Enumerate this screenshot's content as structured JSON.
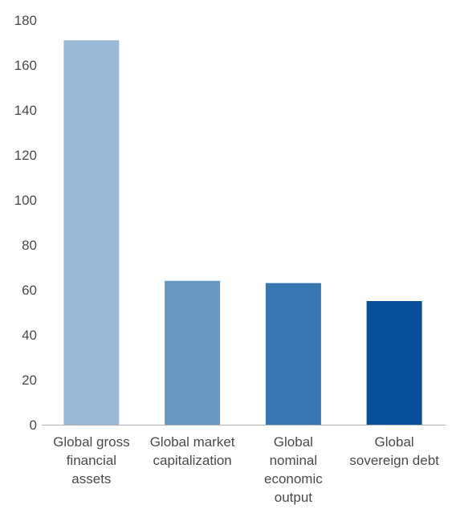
{
  "chart_data": {
    "type": "bar",
    "title": "",
    "xlabel": "",
    "ylabel": "",
    "ylim": [
      0,
      180
    ],
    "yticks": [
      0,
      20,
      40,
      60,
      80,
      100,
      120,
      140,
      160,
      180
    ],
    "grid": false,
    "categories": [
      [
        "Global gross",
        "financial",
        "assets"
      ],
      [
        "Global market",
        "capitalization"
      ],
      [
        "Global",
        "nominal",
        "economic",
        "output"
      ],
      [
        "Global",
        "sovereign debt"
      ]
    ],
    "values": [
      171,
      64,
      63,
      55
    ],
    "colors": [
      "#9bbad8",
      "#6a98c4",
      "#3876b2",
      "#08519a"
    ],
    "axis_color": "#b0b0b0"
  }
}
